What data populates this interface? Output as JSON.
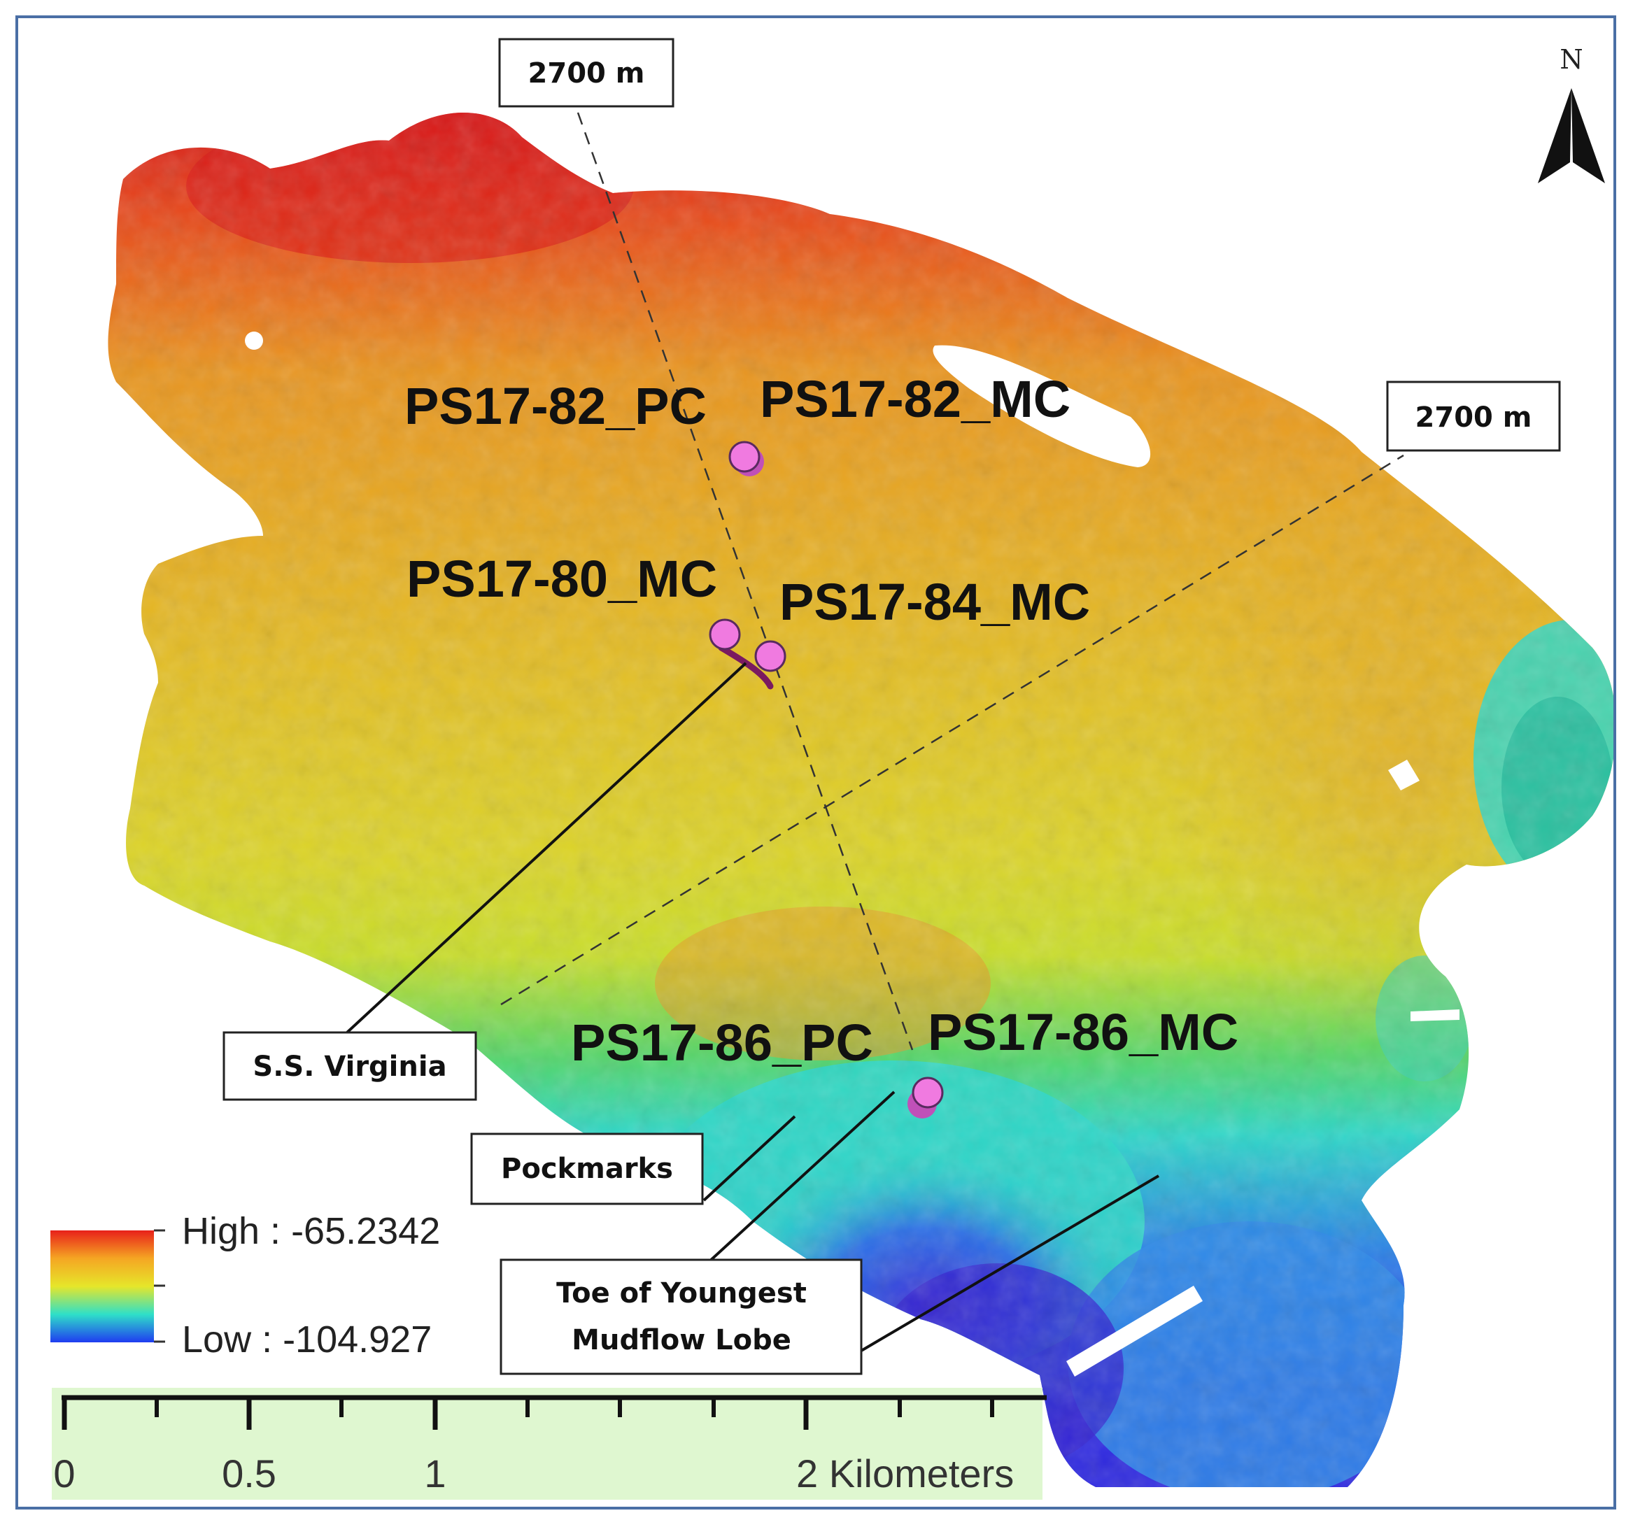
{
  "depth_markers": {
    "top": "2700 m",
    "right": "2700 m"
  },
  "north_arrow": {
    "label": "N",
    "icon": "north-arrow-icon"
  },
  "sites": [
    {
      "id": "ps17-82-pc",
      "label": "PS17-82_PC"
    },
    {
      "id": "ps17-82-mc",
      "label": "PS17-82_MC"
    },
    {
      "id": "ps17-80-mc",
      "label": "PS17-80_MC"
    },
    {
      "id": "ps17-84-mc",
      "label": "PS17-84_MC"
    },
    {
      "id": "ps17-86-pc",
      "label": "PS17-86_PC"
    },
    {
      "id": "ps17-86-mc",
      "label": "PS17-86_MC"
    }
  ],
  "callouts": {
    "ss_virginia": "S.S. Virginia",
    "pockmarks": "Pockmarks",
    "toe_line1": "Toe of Youngest",
    "toe_line2": "Mudflow Lobe"
  },
  "legend": {
    "high": "High : -65.2342",
    "low": "Low : -104.927",
    "colors": [
      "#e8201a",
      "#f5a623",
      "#e6e62a",
      "#2fe0c8",
      "#1f3cf0"
    ]
  },
  "scale_bar": {
    "labels": [
      "0",
      "0.5",
      "1",
      "2 Kilometers"
    ],
    "background": "#dff7d0"
  },
  "colors": {
    "site_marker": "#f07ae0",
    "frame": "#4a6fa5"
  }
}
